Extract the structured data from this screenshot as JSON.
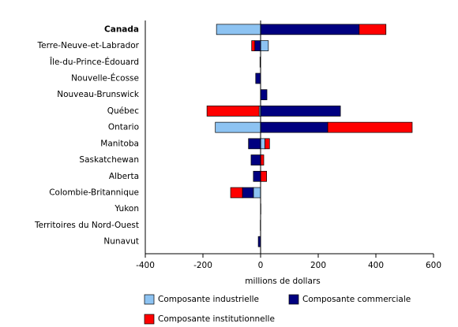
{
  "chart_data": {
    "type": "diverging-stacked-bar",
    "categories": [
      "Canada",
      "Terre-Neuve-et-Labrador",
      "Île-du-Prince-Édouard",
      "Nouvelle-Écosse",
      "Nouveau-Brunswick",
      "Québec",
      "Ontario",
      "Manitoba",
      "Saskatchewan",
      "Alberta",
      "Colombie-Britannique",
      "Yukon",
      "Territoires du Nord-Ouest",
      "Nunavut"
    ],
    "series": [
      {
        "name": "Composante industrielle",
        "color": "#8dc3f2",
        "values": [
          -153,
          27,
          0,
          0,
          0,
          -5,
          -157,
          15,
          0,
          0,
          -25,
          0,
          0,
          0
        ]
      },
      {
        "name": "Composante commerciale",
        "color": "#000080",
        "values": [
          342,
          -20,
          -2,
          -17,
          22,
          277,
          233,
          -42,
          -33,
          -25,
          -38,
          1,
          -1,
          -8
        ]
      },
      {
        "name": "Composante institutionnelle",
        "color": "#ff0000",
        "values": [
          93,
          -11,
          0,
          0,
          0,
          -181,
          293,
          16,
          11,
          21,
          -41,
          0,
          0,
          0
        ]
      }
    ],
    "xlabel": "millions de dollars",
    "xlim": [
      -400,
      600
    ],
    "xticks": [
      -400,
      -200,
      0,
      200,
      400,
      600
    ]
  }
}
